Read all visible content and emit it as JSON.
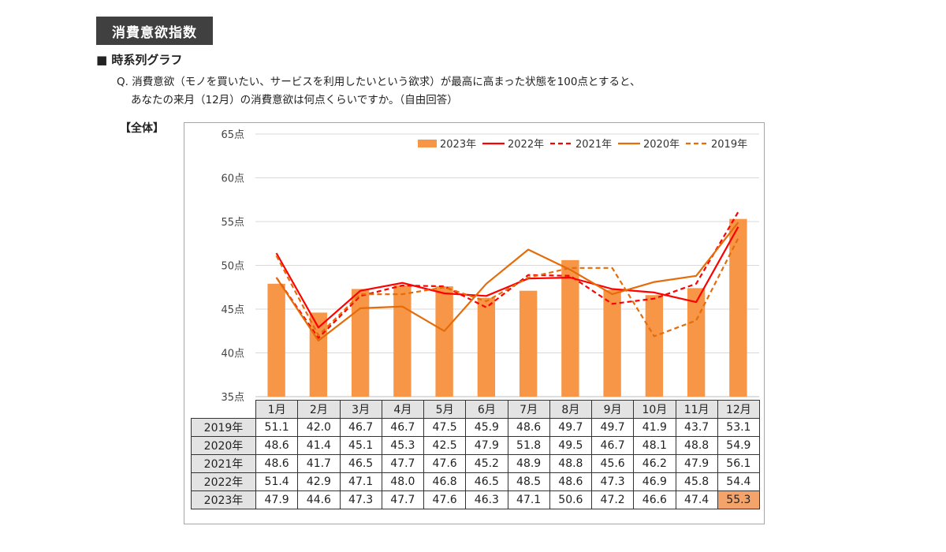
{
  "header": {
    "title": "消費意欲指数"
  },
  "section": {
    "subtitle": "■ 時系列グラフ"
  },
  "question": {
    "line1": "Q. 消費意欲（モノを買いたい、サービスを利用したいという欲求）が最高に高まった状態を100点とすると、",
    "line2": "あなたの来月（12月）の消費意欲は何点くらいですか。（自由回答）"
  },
  "scope_label": "【全体】",
  "chart_data": {
    "type": "bar+line",
    "categories": [
      "1月",
      "2月",
      "3月",
      "4月",
      "5月",
      "6月",
      "7月",
      "8月",
      "9月",
      "10月",
      "11月",
      "12月"
    ],
    "y_tick_labels": [
      "35点",
      "40点",
      "45点",
      "50点",
      "55点",
      "60点",
      "65点"
    ],
    "ylim": [
      35,
      65
    ],
    "y_ticks": [
      35,
      40,
      45,
      50,
      55,
      60,
      65
    ],
    "grid": true,
    "legend_placement": "top-right",
    "series": [
      {
        "name": "2023年",
        "kind": "bar",
        "color": "#f79646",
        "style": "bar",
        "values": [
          47.9,
          44.6,
          47.3,
          47.7,
          47.6,
          46.3,
          47.1,
          50.6,
          47.2,
          46.6,
          47.4,
          55.3
        ]
      },
      {
        "name": "2022年",
        "kind": "line",
        "color": "#ff0000",
        "style": "solid",
        "values": [
          51.4,
          42.9,
          47.1,
          48.0,
          46.8,
          46.5,
          48.5,
          48.6,
          47.3,
          46.9,
          45.8,
          54.4
        ]
      },
      {
        "name": "2021年",
        "kind": "line",
        "color": "#ff0000",
        "style": "dashed",
        "values": [
          48.6,
          41.7,
          46.5,
          47.7,
          47.6,
          45.2,
          48.9,
          48.8,
          45.6,
          46.2,
          47.9,
          56.1
        ]
      },
      {
        "name": "2020年",
        "kind": "line",
        "color": "#e46c0a",
        "style": "solid",
        "values": [
          48.6,
          41.4,
          45.1,
          45.3,
          42.5,
          47.9,
          51.8,
          49.5,
          46.7,
          48.1,
          48.8,
          54.9
        ]
      },
      {
        "name": "2019年",
        "kind": "line",
        "color": "#e46c0a",
        "style": "dashed",
        "values": [
          51.1,
          42.0,
          46.7,
          46.7,
          47.5,
          45.9,
          48.6,
          49.7,
          49.7,
          41.9,
          43.7,
          53.1
        ]
      }
    ],
    "table_row_order": [
      "2019年",
      "2020年",
      "2021年",
      "2022年",
      "2023年"
    ],
    "table_highlight": {
      "row": "2023年",
      "col": "12月",
      "color": "#f4a46a"
    }
  }
}
